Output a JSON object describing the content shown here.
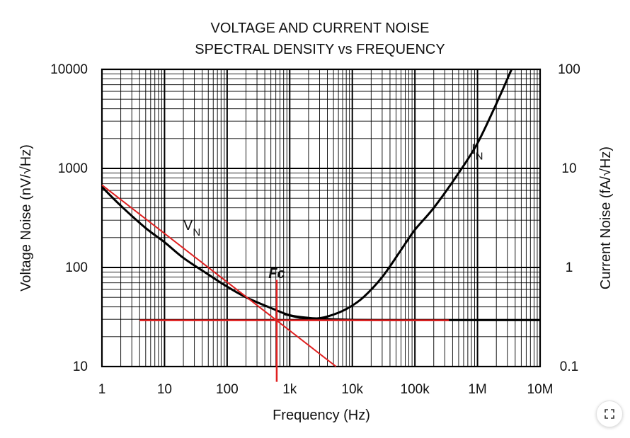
{
  "chart_data": {
    "type": "line",
    "title_line1": "VOLTAGE AND CURRENT NOISE",
    "title_line2": "SPECTRAL DENSITY vs FREQUENCY",
    "xlabel": "Frequency (Hz)",
    "ylabel_left": "Voltage Noise (nV/√Hz)",
    "ylabel_right": "Current Noise (fA/√Hz)",
    "xscale": "log",
    "yscale": "log",
    "xlim": [
      1,
      10000000
    ],
    "ylim_left": [
      10,
      10000
    ],
    "ylim_right": [
      0.1,
      100
    ],
    "grid": true,
    "x_ticks": [
      {
        "value": 1,
        "label": "1"
      },
      {
        "value": 10,
        "label": "10"
      },
      {
        "value": 100,
        "label": "100"
      },
      {
        "value": 1000,
        "label": "1k"
      },
      {
        "value": 10000,
        "label": "10k"
      },
      {
        "value": 100000,
        "label": "100k"
      },
      {
        "value": 1000000,
        "label": "1M"
      },
      {
        "value": 10000000,
        "label": "10M"
      }
    ],
    "y_ticks_left": [
      {
        "value": 10,
        "label": "10"
      },
      {
        "value": 100,
        "label": "100"
      },
      {
        "value": 1000,
        "label": "1000"
      },
      {
        "value": 10000,
        "label": "10000"
      }
    ],
    "y_ticks_right": [
      {
        "value": 0.1,
        "label": "0.1"
      },
      {
        "value": 1,
        "label": "1"
      },
      {
        "value": 10,
        "label": "10"
      },
      {
        "value": 100,
        "label": "100"
      }
    ],
    "series": [
      {
        "name": "VN",
        "label_main": "V",
        "label_sub": "N",
        "label_at": [
          20,
          240
        ],
        "axis": "left",
        "color": "#000000",
        "x": [
          1,
          2,
          5,
          10,
          20,
          50,
          100,
          200,
          500,
          1000,
          2000,
          3000,
          5000,
          10000,
          20000,
          50000,
          100000,
          1000000,
          10000000
        ],
        "y": [
          650,
          420,
          250,
          180,
          125,
          85,
          64,
          50,
          39,
          33,
          31,
          30.5,
          30,
          29.6,
          29.5,
          29.4,
          29.4,
          29.4,
          29.4
        ]
      },
      {
        "name": "IN",
        "label_main": "I",
        "label_sub": "N",
        "label_at": [
          800000,
          1400
        ],
        "axis": "left",
        "color": "#000000",
        "x": [
          800,
          1500,
          2500,
          4000,
          8000,
          15000,
          30000,
          60000,
          100000,
          200000,
          500000,
          1000000,
          2000000,
          3500000
        ],
        "y": [
          34,
          31,
          30.5,
          32,
          38,
          50,
          80,
          150,
          240,
          400,
          900,
          1800,
          4500,
          10000
        ]
      }
    ],
    "annotations": {
      "color": "#e02020",
      "fc_label": "Fc",
      "fc_x": 620,
      "one_over_f_line": {
        "x": [
          1,
          5500
        ],
        "y": [
          680,
          10
        ]
      },
      "white_noise_line": {
        "x": [
          4,
          350000
        ],
        "y": [
          29.3,
          29.3
        ]
      },
      "fc_vertical": {
        "x": 620,
        "y": [
          7,
          75
        ]
      }
    }
  },
  "ui": {
    "expand_icon": "expand-corners-icon"
  }
}
